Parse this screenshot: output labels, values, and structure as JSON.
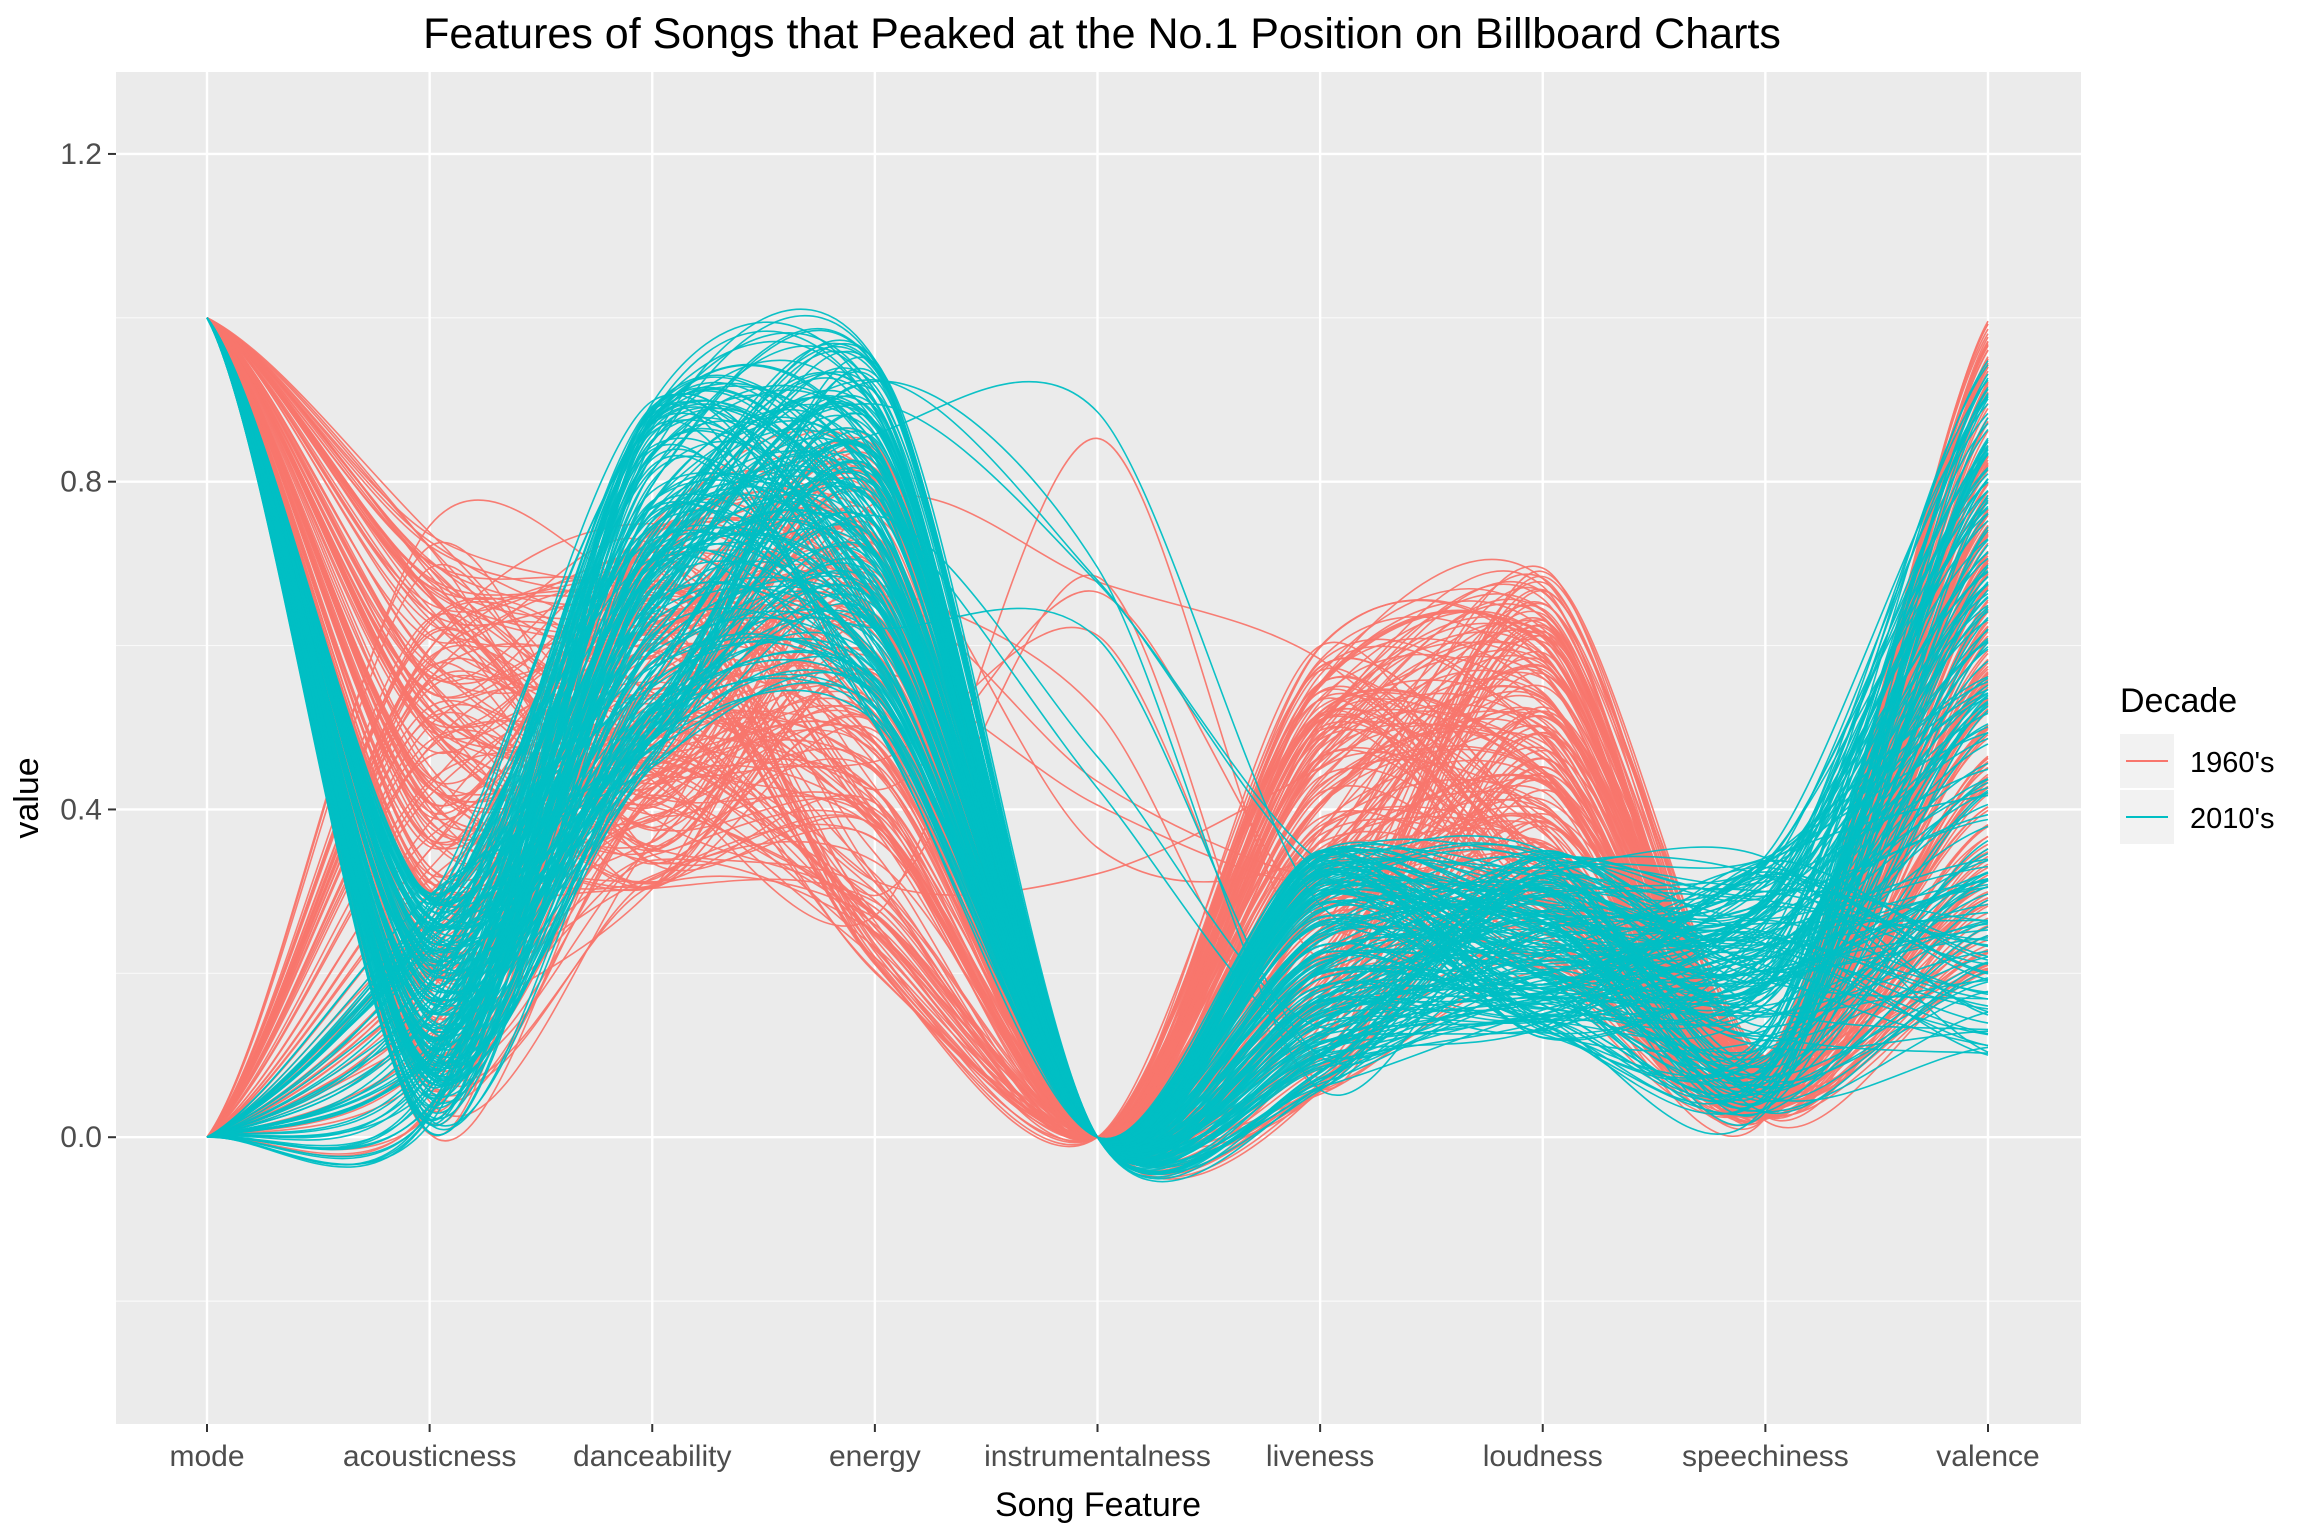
{
  "chart_data": {
    "type": "line",
    "subtype": "smoothed parallel coordinates (Andrews-style curves)",
    "title": "Features of Songs that Peaked at the No.1 Position on Billboard Charts",
    "xlabel": "Song Feature",
    "ylabel": "value",
    "categories": [
      "mode",
      "acousticness",
      "danceability",
      "energy",
      "instrumentalness",
      "liveness",
      "loudness",
      "speechiness",
      "valence"
    ],
    "ylim": [
      -0.35,
      1.3
    ],
    "yticks": [
      0.0,
      0.4,
      0.8,
      1.2
    ],
    "ytick_labels": [
      "0.0",
      "0.4",
      "0.8",
      "1.2"
    ],
    "grid": true,
    "legend": {
      "title": "Decade",
      "placement": "right",
      "entries": [
        "1960's",
        "2010's"
      ]
    },
    "series_summary": [
      {
        "name": "1960's",
        "color": "#F8766D",
        "typical_values": {
          "mode": [
            0,
            1
          ],
          "acousticness": [
            0.0,
            0.75
          ],
          "danceability": [
            0.3,
            0.75
          ],
          "energy": [
            0.2,
            0.85
          ],
          "instrumentalness": [
            0.0,
            0.0
          ],
          "liveness": [
            0.05,
            0.6
          ],
          "loudness": [
            0.2,
            0.7
          ],
          "speechiness": [
            0.02,
            0.1
          ],
          "valence": [
            0.2,
            1.0
          ]
        }
      },
      {
        "name": "2010's",
        "color": "#00BFC4",
        "typical_values": {
          "mode": [
            0,
            1
          ],
          "acousticness": [
            0.0,
            0.3
          ],
          "danceability": [
            0.45,
            0.9
          ],
          "energy": [
            0.5,
            0.95
          ],
          "instrumentalness": [
            0.0,
            0.0
          ],
          "liveness": [
            0.05,
            0.35
          ],
          "loudness": [
            0.12,
            0.35
          ],
          "speechiness": [
            0.03,
            0.35
          ],
          "valence": [
            0.1,
            0.95
          ]
        }
      }
    ],
    "note_colors": {
      "panel_background": "#EBEBEB",
      "grid_major": "#FFFFFF"
    }
  }
}
